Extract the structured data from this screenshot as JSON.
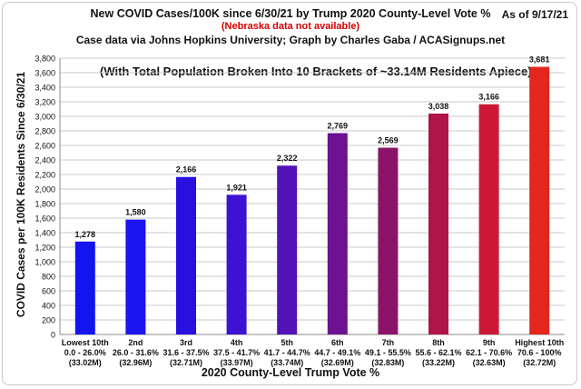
{
  "title": "New COVID Cases/100K since 6/30/21 by Trump 2020 County-Level Vote %",
  "note": "(Nebraska data not available)",
  "credit": "Case data via Johns Hopkins University; Graph by Charles Gaba / ACASignups.net",
  "as_of": "As of 9/17/21",
  "chart_data": {
    "type": "bar",
    "title": "New COVID Cases/100K since 6/30/21 by Trump 2020 County-Level Vote %",
    "subtitle": "(With Total Population Broken Into 10 Brackets of ~33.14M Residents Apiece)",
    "xlabel": "2020 County-Level Trump Vote %",
    "ylabel": "COVID Cases per 100K Residents Since 6/30/21",
    "ylim": [
      0,
      3800
    ],
    "yticks": [
      0,
      200,
      400,
      600,
      800,
      1000,
      1200,
      1400,
      1600,
      1800,
      2000,
      2200,
      2400,
      2600,
      2800,
      3000,
      3200,
      3400,
      3600,
      3800
    ],
    "ytick_labels": [
      "0",
      "200",
      "400",
      "600",
      "800",
      "1,000",
      "1,200",
      "1,400",
      "1,600",
      "1,800",
      "2,000",
      "2,200",
      "2,400",
      "2,600",
      "2,800",
      "3,000",
      "3,200",
      "3,400",
      "3,600",
      "3,800"
    ],
    "grid": true,
    "legend": "none",
    "categories": [
      {
        "name": "Lowest 10th",
        "range": "0.0 - 26.0%",
        "pop": "(33.02M)"
      },
      {
        "name": "2nd",
        "range": "26.0 - 31.6%",
        "pop": "(32.96M)"
      },
      {
        "name": "3rd",
        "range": "31.6 - 37.5%",
        "pop": "(32.71M)"
      },
      {
        "name": "4th",
        "range": "37.5 - 41.7%",
        "pop": "(33.97M)"
      },
      {
        "name": "5th",
        "range": "41.7 - 44.7%",
        "pop": "(33.74M)"
      },
      {
        "name": "6th",
        "range": "44.7 - 49.1%",
        "pop": "(32.69M)"
      },
      {
        "name": "7th",
        "range": "49.1 - 55.5%",
        "pop": "(32.83M)"
      },
      {
        "name": "8th",
        "range": "55.6 - 62.1%",
        "pop": "(33.22M)"
      },
      {
        "name": "9th",
        "range": "62.1 - 70.6%",
        "pop": "(32.63M)"
      },
      {
        "name": "Highest 10th",
        "range": "70.6 - 100%",
        "pop": "(32.72M)"
      }
    ],
    "values": [
      1278,
      1580,
      2166,
      1921,
      2322,
      2769,
      2569,
      3038,
      3166,
      3681
    ],
    "value_labels": [
      "1,278",
      "1,580",
      "2,166",
      "1,921",
      "2,322",
      "2,769",
      "2,569",
      "3,038",
      "3,166",
      "3,681"
    ],
    "colors": [
      "#1414f0",
      "#1a14ee",
      "#2a10e0",
      "#3e12d2",
      "#5212b8",
      "#6c1290",
      "#8c1468",
      "#b01448",
      "#cc1836",
      "#e3261e"
    ]
  }
}
